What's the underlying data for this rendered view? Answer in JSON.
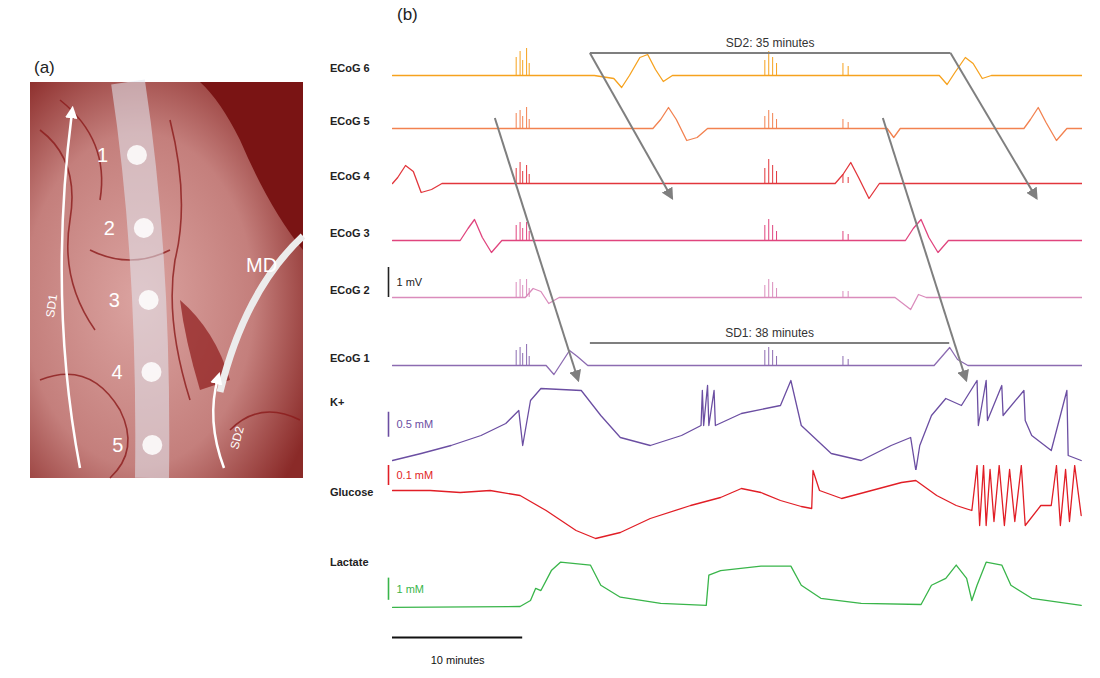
{
  "panel_a": {
    "label": "(a)",
    "electrodes": [
      "1",
      "2",
      "3",
      "4",
      "5"
    ],
    "probe": "MD",
    "arrows": [
      "SD1",
      "SD2"
    ]
  },
  "chart_data": {
    "type": "line",
    "panel": "(b)",
    "xlim": [
      0,
      53
    ],
    "tick_labels": false,
    "time_scale_bar": {
      "value": 10,
      "label": "10 minutes"
    },
    "series": [
      {
        "name": "ECoG 6",
        "color": "#f6a21e",
        "ylim": [
          -1,
          1
        ],
        "x": [
          0,
          15.5,
          17.0,
          17.6,
          18.2,
          19.0,
          19.6,
          20.2,
          20.8,
          21.5,
          42.0,
          42.6,
          43.2,
          44.0,
          44.6,
          45.3,
          46.0,
          53
        ],
        "values": [
          0,
          0,
          -0.1,
          -0.4,
          0,
          0.6,
          0.7,
          0.2,
          -0.2,
          0,
          0,
          -0.3,
          0.1,
          0.6,
          0.4,
          -0.1,
          0,
          0
        ],
        "spikes": {
          "x": [
            9.5,
            9.8,
            10.0,
            10.3,
            10.5,
            28.6,
            28.9,
            29.2,
            29.5,
            34.6,
            35.0
          ],
          "values": [
            0.6,
            0.8,
            0.5,
            0.9,
            0.4,
            0.5,
            0.8,
            0.6,
            0.4,
            0.4,
            0.3
          ]
        }
      },
      {
        "name": "ECoG 5",
        "color": "#f28250",
        "ylim": [
          -1,
          1
        ],
        "x": [
          0,
          20.0,
          20.6,
          21.2,
          21.8,
          22.6,
          23.4,
          24.2,
          38.0,
          38.5,
          39.0,
          48.5,
          49.0,
          49.6,
          50.2,
          51.0,
          51.8,
          53
        ],
        "values": [
          0,
          0,
          0.3,
          0.7,
          0.3,
          -0.4,
          -0.3,
          0,
          0,
          -0.3,
          0,
          0,
          0.3,
          0.7,
          0.2,
          -0.4,
          0,
          0
        ],
        "spikes": {
          "x": [
            9.5,
            9.8,
            10.0,
            10.3,
            10.5,
            28.6,
            28.9,
            29.2,
            29.5,
            34.6,
            35.0
          ],
          "values": [
            0.5,
            0.6,
            0.4,
            0.7,
            0.3,
            0.4,
            0.6,
            0.5,
            0.3,
            0.3,
            0.2
          ]
        }
      },
      {
        "name": "ECoG 4",
        "color": "#e2363c",
        "ylim": [
          -1,
          1
        ],
        "x": [
          0,
          0.4,
          1.0,
          1.6,
          2.2,
          3.0,
          3.8,
          34.0,
          34.6,
          35.2,
          35.8,
          36.6,
          37.4,
          53
        ],
        "values": [
          0,
          0.2,
          0.6,
          0.4,
          -0.3,
          -0.2,
          0,
          0,
          0.3,
          0.7,
          0.2,
          -0.5,
          0,
          0
        ],
        "spikes": {
          "x": [
            9.5,
            9.8,
            10.0,
            10.3,
            10.5,
            28.6,
            28.9,
            29.2,
            29.5,
            34.6,
            35.0
          ],
          "values": [
            0.5,
            0.7,
            0.4,
            0.6,
            0.3,
            0.5,
            0.8,
            0.6,
            0.4,
            0.3,
            0.2
          ]
        }
      },
      {
        "name": "ECoG 3",
        "color": "#e0457e",
        "ylim": [
          -1,
          1
        ],
        "x": [
          0,
          5.2,
          5.8,
          6.3,
          6.9,
          7.6,
          8.4,
          39.4,
          40.0,
          40.6,
          41.2,
          41.9,
          42.7,
          53
        ],
        "values": [
          0,
          0,
          0.4,
          0.7,
          0.1,
          -0.4,
          0,
          0,
          0.4,
          0.7,
          0.1,
          -0.4,
          0,
          0
        ],
        "spikes": {
          "x": [
            9.5,
            9.8,
            10.0,
            10.3,
            10.5,
            28.6,
            28.9,
            29.2,
            29.5,
            34.6,
            35.0
          ],
          "values": [
            0.5,
            0.6,
            0.4,
            0.6,
            0.3,
            0.5,
            0.7,
            0.5,
            0.3,
            0.3,
            0.2
          ]
        }
      },
      {
        "name": "ECoG 2",
        "color": "#da8cbc",
        "ylim": [
          -1,
          1
        ],
        "scale_bar": {
          "value": 1,
          "label": "1 mV"
        },
        "x": [
          0,
          10.2,
          10.8,
          11.4,
          12.0,
          12.8,
          38.6,
          39.2,
          39.8,
          40.4,
          41.0,
          53
        ],
        "values": [
          0,
          0,
          0.3,
          0.2,
          -0.2,
          0,
          0,
          -0.2,
          -0.4,
          0.1,
          0,
          0
        ],
        "spikes": {
          "x": [
            9.5,
            9.8,
            10.0,
            10.3,
            10.5,
            28.6,
            28.9,
            29.2,
            29.5,
            34.6,
            35.0
          ],
          "values": [
            0.5,
            0.6,
            0.4,
            0.6,
            0.3,
            0.4,
            0.6,
            0.5,
            0.3,
            0.2,
            0.2
          ]
        }
      },
      {
        "name": "ECoG 1",
        "color": "#8c6bb1",
        "ylim": [
          -1,
          1
        ],
        "x": [
          0,
          11.8,
          12.4,
          13.0,
          13.6,
          14.2,
          15.0,
          41.6,
          42.2,
          42.8,
          43.4,
          44.2,
          53
        ],
        "values": [
          0,
          0,
          -0.3,
          0.1,
          0.5,
          0.3,
          0,
          0,
          0.3,
          0.6,
          0.2,
          0,
          0
        ],
        "spikes": {
          "x": [
            9.5,
            9.8,
            10.0,
            10.3,
            10.5,
            28.6,
            28.9,
            29.2,
            29.5,
            34.6,
            35.0
          ],
          "values": [
            0.5,
            0.6,
            0.4,
            0.7,
            0.3,
            0.5,
            0.6,
            0.5,
            0.3,
            0.3,
            0.2
          ]
        }
      },
      {
        "name": "K+",
        "color": "#6b4ea2",
        "ylim": [
          0,
          1.9
        ],
        "scale_bar": {
          "value": 0.5,
          "label": "0.5 mM"
        },
        "x": [
          0,
          2.2,
          4.5,
          6.8,
          8.7,
          9.7,
          10.0,
          10.6,
          11.4,
          14.5,
          16.0,
          17.5,
          19.8,
          22.2,
          23.7,
          23.8,
          23.9,
          24.2,
          24.3,
          24.7,
          24.8,
          26.8,
          29.8,
          30.6,
          31.4,
          33.7,
          36.0,
          38.3,
          39.8,
          40.2,
          40.5,
          41.4,
          42.5,
          43.7,
          44.9,
          45.0,
          45.6,
          45.7,
          46.8,
          46.9,
          48.5,
          48.6,
          49.1,
          50.6,
          51.8,
          51.9,
          52.9
        ],
        "values": [
          0.2,
          0.34,
          0.5,
          0.7,
          0.94,
          1.2,
          0.5,
          1.4,
          1.64,
          1.6,
          1.1,
          0.66,
          0.5,
          0.7,
          0.9,
          1.6,
          0.9,
          1.7,
          0.9,
          1.6,
          0.9,
          1.14,
          1.3,
          1.8,
          0.9,
          0.34,
          0.2,
          0.5,
          0.66,
          0,
          0.5,
          1.1,
          1.44,
          1.3,
          1.8,
          0.9,
          1.8,
          1.0,
          1.7,
          1.1,
          1.6,
          1.0,
          0.7,
          0.4,
          1.6,
          0.3,
          0.2
        ]
      },
      {
        "name": "Glucose",
        "color": "#e11e26",
        "ylim": [
          0,
          0.4
        ],
        "scale_bar": {
          "value": 0.1,
          "label": "0.1 mM"
        },
        "x": [
          0,
          2.9,
          5.2,
          7.5,
          9.8,
          11.8,
          14.1,
          15.6,
          17.5,
          19.8,
          22.9,
          25.2,
          26.8,
          28.3,
          29.8,
          31.4,
          32.2,
          32.3,
          32.8,
          34.5,
          36.8,
          39.1,
          40.2,
          41.8,
          43.3,
          44.5,
          44.9,
          45.1,
          45.4,
          45.6,
          45.9,
          46.2,
          46.6,
          47.0,
          47.4,
          47.8,
          48.3,
          48.6,
          49.8,
          50.6,
          51.0,
          51.3,
          51.7,
          52.0,
          52.4,
          52.9
        ],
        "values": [
          0.275,
          0.275,
          0.265,
          0.275,
          0.25,
          0.175,
          0.075,
          0.035,
          0.065,
          0.135,
          0.2,
          0.24,
          0.285,
          0.265,
          0.225,
          0.195,
          0.185,
          0.375,
          0.275,
          0.235,
          0.275,
          0.315,
          0.325,
          0.25,
          0.2,
          0.175,
          0.4,
          0.1,
          0.4,
          0.1,
          0.38,
          0.12,
          0.4,
          0.1,
          0.38,
          0.12,
          0.4,
          0.1,
          0.2,
          0.2,
          0.4,
          0.1,
          0.38,
          0.12,
          0.4,
          0.15
        ]
      },
      {
        "name": "Lactate",
        "color": "#39b54a",
        "ylim": [
          0,
          2.3
        ],
        "scale_bar": {
          "value": 1,
          "label": "1 mM"
        },
        "x": [
          0,
          9.8,
          10.6,
          11.0,
          11.4,
          12.2,
          12.9,
          15.2,
          16.0,
          17.5,
          20.6,
          24.1,
          24.3,
          25.2,
          28.3,
          30.6,
          31.4,
          32.9,
          36.0,
          40.6,
          41.4,
          42.5,
          43.3,
          44.1,
          44.5,
          44.9,
          45.6,
          46.8,
          47.5,
          49.1,
          52.9
        ],
        "values": [
          0.14,
          0.18,
          0.45,
          1.0,
          0.9,
          1.8,
          2.18,
          2.05,
          1.14,
          0.6,
          0.32,
          0.23,
          1.6,
          1.8,
          2.0,
          2.0,
          1.14,
          0.55,
          0.32,
          0.27,
          1.14,
          1.45,
          2.05,
          1.45,
          0.45,
          1.14,
          2.18,
          2.05,
          1.14,
          0.55,
          0.23
        ]
      }
    ],
    "annotations": [
      {
        "text": "SD2: 35 minutes",
        "above": "ECoG 6",
        "start": 15.2,
        "end": 42.9,
        "arrows": [
          {
            "from": "ECoG 6",
            "from_x": 15.2,
            "to": "ECoG 4",
            "to_x": 21.5
          },
          {
            "from": "ECoG 6",
            "from_x": 42.9,
            "to": "ECoG 4",
            "to_x": 49.5
          }
        ]
      },
      {
        "text": "SD1: 38 minutes",
        "above": "ECoG 1",
        "start": 15.2,
        "end": 42.8,
        "arrows": [
          {
            "from": "ECoG 5",
            "from_x": 7.9,
            "to": "ECoG 1",
            "to_x": 14.3
          },
          {
            "from": "ECoG 5",
            "from_x": 37.7,
            "to": "ECoG 1",
            "to_x": 44.1
          }
        ]
      }
    ]
  }
}
